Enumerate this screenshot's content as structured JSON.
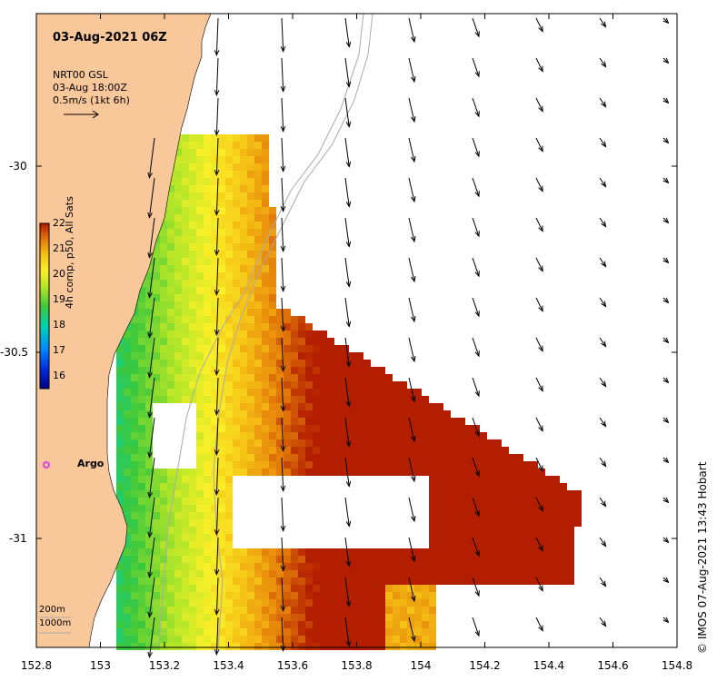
{
  "map": {
    "title": "03-Aug-2021 06Z",
    "current_source": "NRT00 GSL",
    "current_time": "03-Aug 18:00Z",
    "vector_scale": "0.5m/s (1kt 6h)",
    "colorbar_title": "4h comp, p50, All Sats",
    "colorbar_ticks": [
      "22",
      "21",
      "20",
      "19",
      "18",
      "17",
      "16"
    ],
    "colorbar_range": [
      15.5,
      22
    ],
    "x_ticks": [
      "152.8",
      "153",
      "153.2",
      "153.4",
      "153.6",
      "153.8",
      "154",
      "154.2",
      "154.4",
      "154.6",
      "154.8"
    ],
    "y_ticks": [
      "-30",
      "-30.5",
      "-31"
    ],
    "argo_label": "Argo",
    "isobaths": [
      "200m",
      "1000m"
    ],
    "credit": "IMOS 07-Aug-2021 13:43 Hobart",
    "credit_symbol": "©",
    "colors": {
      "land": "#f9c89a",
      "argo": "#e040e0",
      "isobath": "#aaaaaa"
    }
  }
}
